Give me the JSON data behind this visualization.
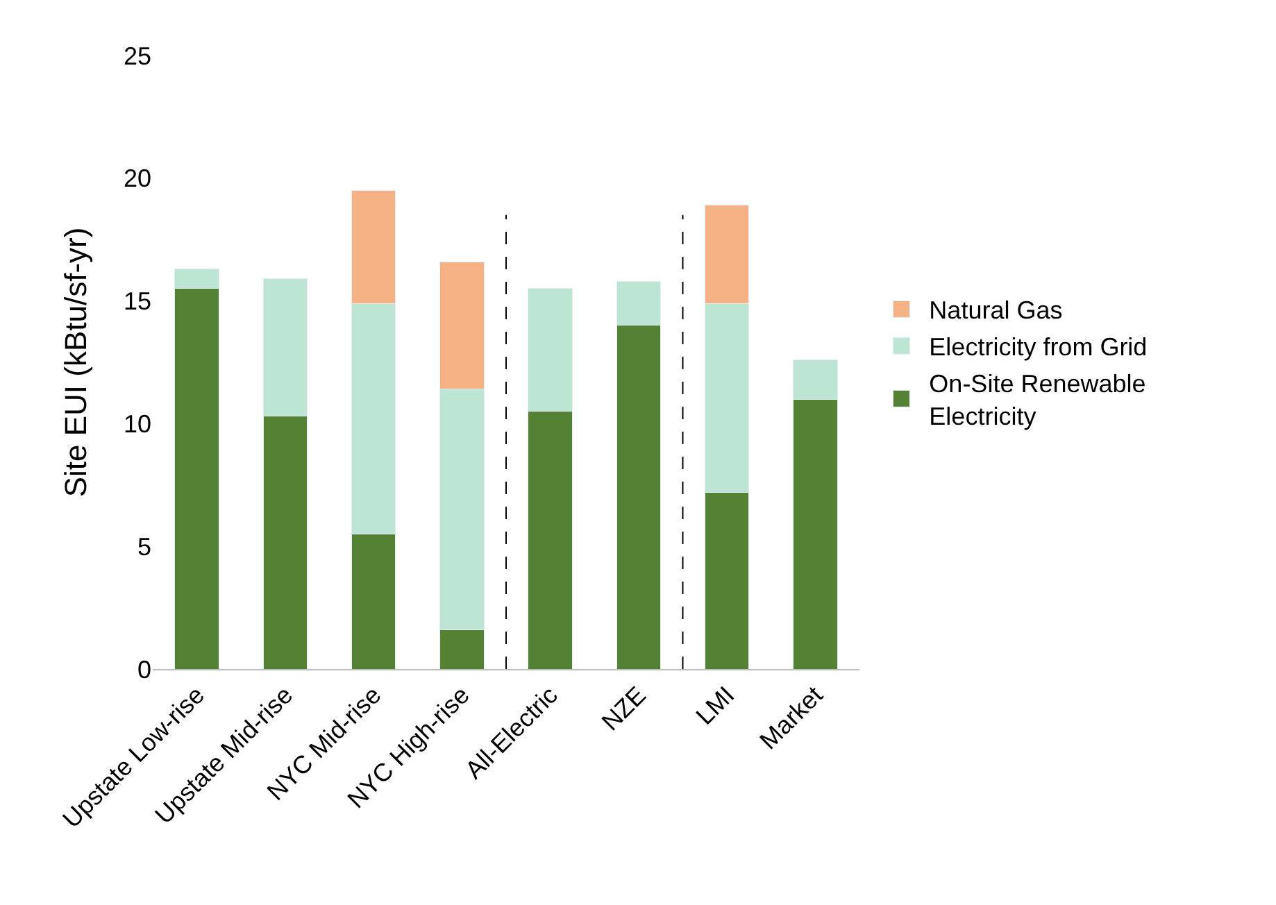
{
  "chart_data": {
    "type": "bar",
    "stacked": true,
    "ylabel": "Site EUI (kBtu/sf-yr)",
    "categories": [
      "Upstate Low-rise",
      "Upstate Mid-rise",
      "NYC Mid-rise",
      "NYC High-rise",
      "All-Electric",
      "NZE",
      "LMI",
      "Market"
    ],
    "series": [
      {
        "name": "On-Site Renewable Electricity",
        "color": "#548235",
        "values": [
          15.5,
          10.3,
          5.5,
          1.6,
          10.5,
          14.0,
          7.2,
          11.0
        ]
      },
      {
        "name": "Electricity from Grid",
        "color": "#bde5d3",
        "values": [
          0.8,
          5.6,
          9.4,
          9.8,
          5.0,
          1.8,
          7.7,
          1.6
        ]
      },
      {
        "name": "Natural Gas",
        "color": "#f4b183",
        "values": [
          null,
          null,
          4.6,
          5.2,
          null,
          null,
          4.0,
          null
        ]
      }
    ],
    "ylim": [
      0,
      25
    ],
    "yticks": [
      0,
      5,
      10,
      15,
      20,
      25
    ],
    "legend": "right"
  }
}
